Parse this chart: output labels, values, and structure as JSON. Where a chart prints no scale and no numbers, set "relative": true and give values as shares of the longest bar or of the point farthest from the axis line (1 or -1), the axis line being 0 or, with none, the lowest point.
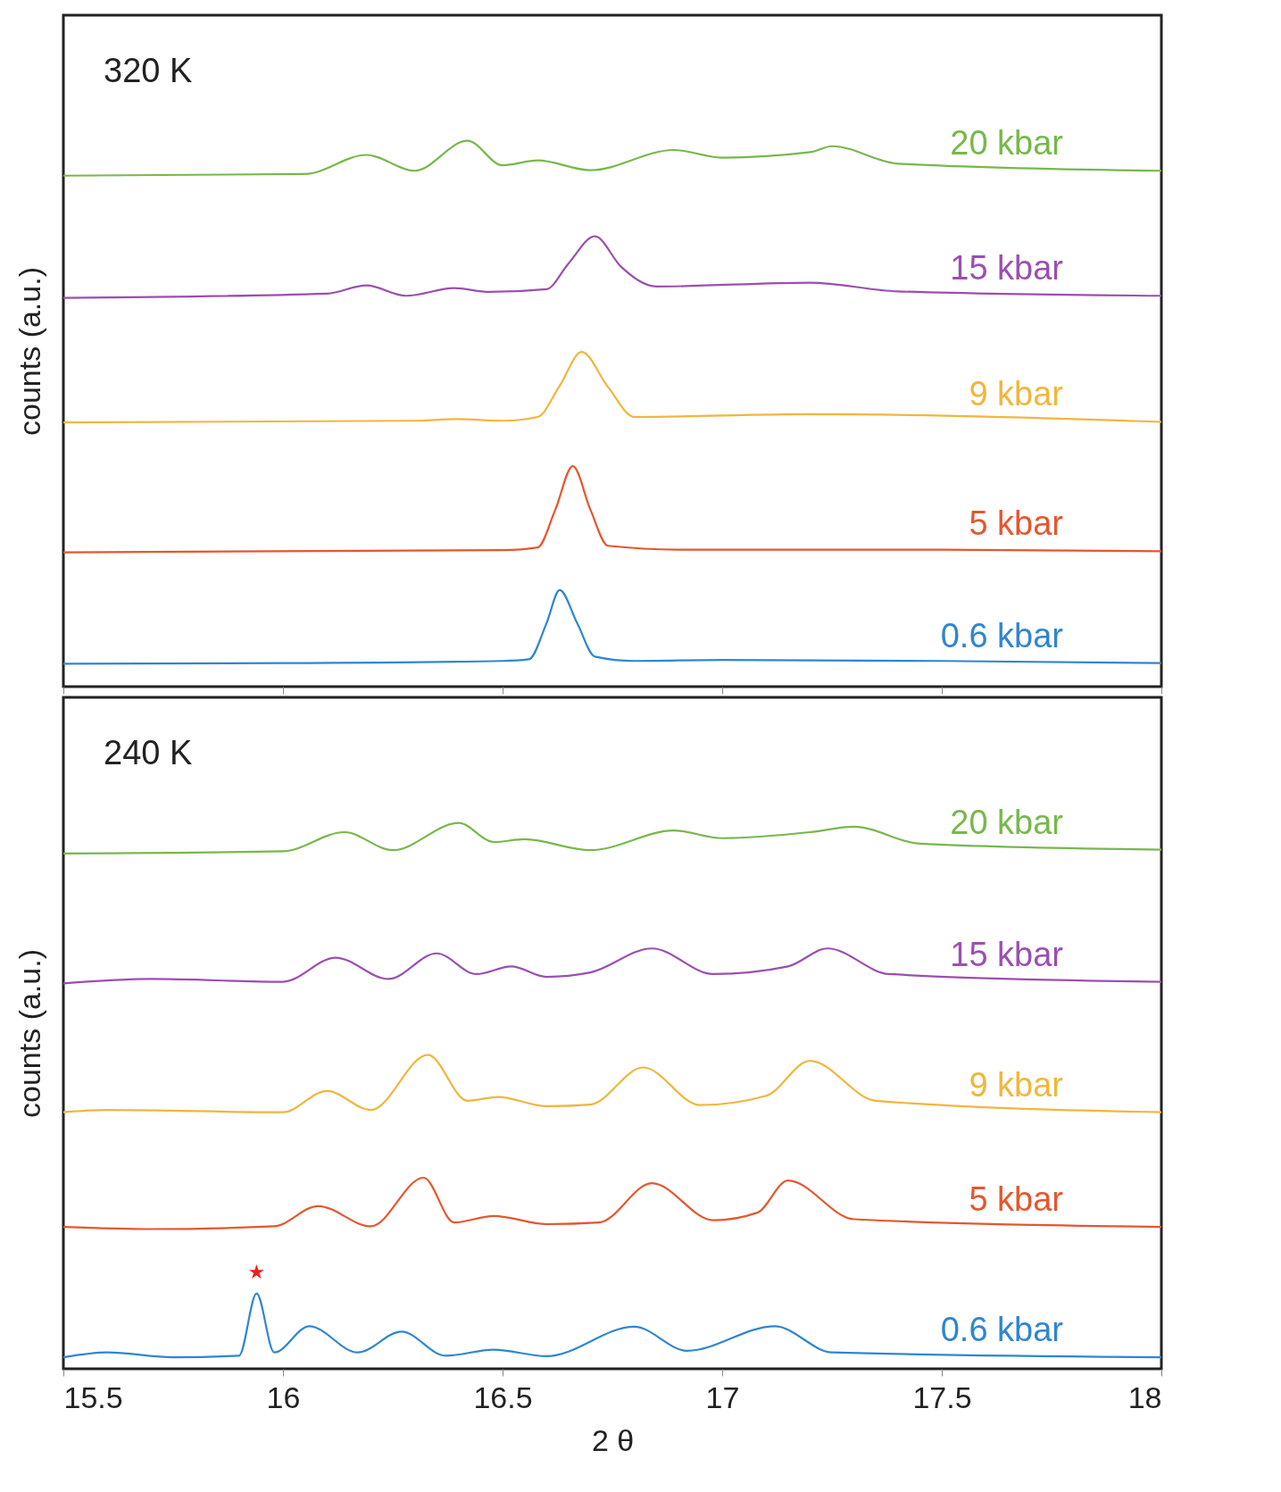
{
  "chart_data": [
    {
      "type": "line",
      "relative": true,
      "ylabel": "counts (a.u.)",
      "annotations": [
        "320 K"
      ],
      "xlim": [
        15.5,
        18
      ],
      "xticks": [
        15.5,
        16,
        16.5,
        17,
        17.5,
        18
      ],
      "tick_labels": false,
      "grid": false,
      "legend": false,
      "marker": "none",
      "line_style": "solid",
      "series": [
        {
          "name": "20 kbar",
          "color": "#77b84b",
          "x": [
            15.5,
            16.05,
            16.19,
            16.3,
            16.42,
            16.5,
            16.58,
            16.7,
            16.89,
            17.0,
            17.2,
            17.25,
            17.4,
            18
          ],
          "values": [
            0.936,
            0.939,
            0.974,
            0.945,
            1.0,
            0.955,
            0.964,
            0.946,
            0.983,
            0.969,
            0.979,
            0.99,
            0.958,
            0.945
          ]
        },
        {
          "name": "15 kbar",
          "color": "#9b4fb0",
          "x": [
            15.5,
            16.1,
            16.19,
            16.28,
            16.39,
            16.47,
            16.6,
            16.65,
            16.71,
            16.77,
            16.85,
            17.2,
            17.4,
            18
          ],
          "values": [
            0.712,
            0.72,
            0.735,
            0.716,
            0.73,
            0.723,
            0.728,
            0.775,
            0.825,
            0.769,
            0.733,
            0.74,
            0.724,
            0.716
          ]
        },
        {
          "name": "9 kbar",
          "color": "#f1b63c",
          "x": [
            15.5,
            16.3,
            16.4,
            16.5,
            16.58,
            16.63,
            16.68,
            16.74,
            16.8,
            17.2,
            18
          ],
          "values": [
            0.484,
            0.487,
            0.49,
            0.487,
            0.494,
            0.551,
            0.613,
            0.549,
            0.494,
            0.499,
            0.485
          ]
        },
        {
          "name": "5 kbar",
          "color": "#e4572e",
          "x": [
            15.5,
            16.5,
            16.58,
            16.62,
            16.66,
            16.7,
            16.74,
            16.9,
            17.5,
            18
          ],
          "values": [
            0.246,
            0.25,
            0.255,
            0.324,
            0.404,
            0.324,
            0.258,
            0.251,
            0.251,
            0.248
          ]
        },
        {
          "name": "0.6 kbar",
          "color": "#2f86d1",
          "x": [
            15.5,
            16.0,
            16.5,
            16.56,
            16.6,
            16.63,
            16.67,
            16.71,
            16.8,
            17.0,
            17.5,
            18
          ],
          "values": [
            0.042,
            0.043,
            0.047,
            0.05,
            0.116,
            0.177,
            0.116,
            0.055,
            0.047,
            0.049,
            0.047,
            0.043
          ]
        }
      ]
    },
    {
      "type": "line",
      "relative": true,
      "ylabel": "counts (a.u.)",
      "xlabel": "2 θ",
      "annotations": [
        "240 K",
        {
          "text": "★",
          "x": 15.94,
          "y": 0.138
        }
      ],
      "xlim": [
        15.5,
        18
      ],
      "xticks": [
        15.5,
        16,
        16.5,
        17,
        17.5,
        18
      ],
      "tick_labels": "x",
      "grid": false,
      "legend": false,
      "marker": "none",
      "line_style": "solid",
      "series": [
        {
          "name": "20 kbar",
          "color": "#77b84b",
          "x": [
            15.5,
            16.0,
            16.14,
            16.25,
            16.4,
            16.48,
            16.55,
            16.7,
            16.89,
            17.0,
            17.2,
            17.3,
            17.45,
            18
          ],
          "values": [
            0.944,
            0.948,
            0.983,
            0.95,
            1.0,
            0.965,
            0.97,
            0.95,
            0.986,
            0.972,
            0.983,
            0.993,
            0.962,
            0.951
          ]
        },
        {
          "name": "15 kbar",
          "color": "#9b4fb0",
          "x": [
            15.5,
            15.7,
            16.0,
            16.12,
            16.24,
            16.35,
            16.44,
            16.52,
            16.6,
            16.7,
            16.84,
            16.98,
            17.15,
            17.24,
            17.38,
            18
          ],
          "values": [
            0.706,
            0.714,
            0.709,
            0.753,
            0.714,
            0.761,
            0.723,
            0.737,
            0.718,
            0.726,
            0.77,
            0.723,
            0.737,
            0.77,
            0.723,
            0.709
          ]
        },
        {
          "name": "9 kbar",
          "color": "#f1b63c",
          "x": [
            15.5,
            15.6,
            16.0,
            16.1,
            16.2,
            16.33,
            16.42,
            16.49,
            16.6,
            16.7,
            16.82,
            16.95,
            17.1,
            17.2,
            17.35,
            18
          ],
          "values": [
            0.47,
            0.474,
            0.47,
            0.509,
            0.474,
            0.575,
            0.491,
            0.498,
            0.481,
            0.484,
            0.552,
            0.483,
            0.5,
            0.564,
            0.491,
            0.47
          ]
        },
        {
          "name": "5 kbar",
          "color": "#e4572e",
          "x": [
            15.5,
            15.7,
            15.98,
            16.08,
            16.2,
            16.32,
            16.39,
            16.48,
            16.6,
            16.72,
            16.84,
            16.98,
            17.08,
            17.15,
            17.3,
            18
          ],
          "values": [
            0.26,
            0.256,
            0.261,
            0.298,
            0.261,
            0.35,
            0.268,
            0.28,
            0.265,
            0.268,
            0.34,
            0.272,
            0.286,
            0.345,
            0.274,
            0.26
          ]
        },
        {
          "name": "0.6 kbar",
          "color": "#2f86d1",
          "x": [
            15.5,
            15.6,
            15.75,
            15.9,
            15.94,
            15.98,
            16.06,
            16.17,
            16.27,
            16.37,
            16.48,
            16.6,
            16.8,
            16.92,
            17.12,
            17.25,
            18
          ],
          "values": [
            0.021,
            0.03,
            0.021,
            0.024,
            0.138,
            0.03,
            0.078,
            0.03,
            0.068,
            0.024,
            0.035,
            0.023,
            0.077,
            0.033,
            0.078,
            0.03,
            0.021
          ]
        }
      ]
    }
  ]
}
